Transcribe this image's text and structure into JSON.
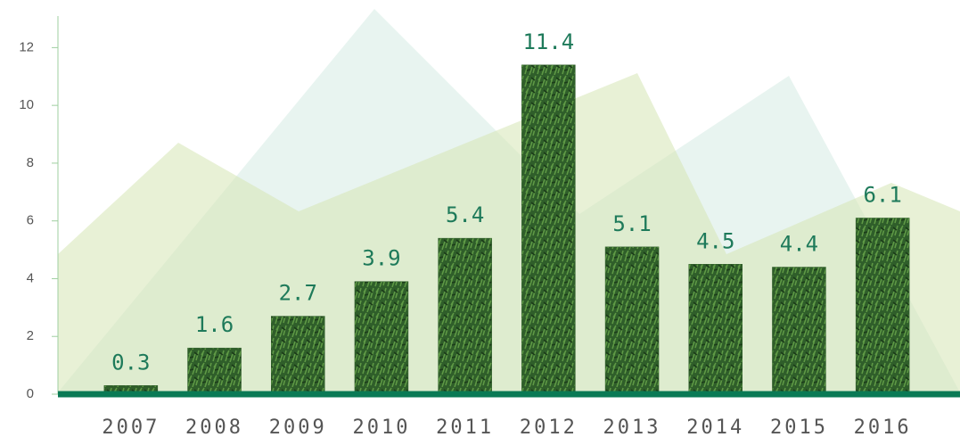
{
  "chart_data": {
    "type": "bar",
    "categories": [
      "2007",
      "2008",
      "2009",
      "2010",
      "2011",
      "2012",
      "2013",
      "2014",
      "2015",
      "2016"
    ],
    "values": [
      0.3,
      1.6,
      2.7,
      3.9,
      5.4,
      11.4,
      5.1,
      4.5,
      4.4,
      6.1
    ],
    "color": "#2f5e2a",
    "ylim": [
      0,
      13
    ],
    "yticks": [
      0,
      2,
      4,
      6,
      8,
      10,
      12
    ]
  }
}
